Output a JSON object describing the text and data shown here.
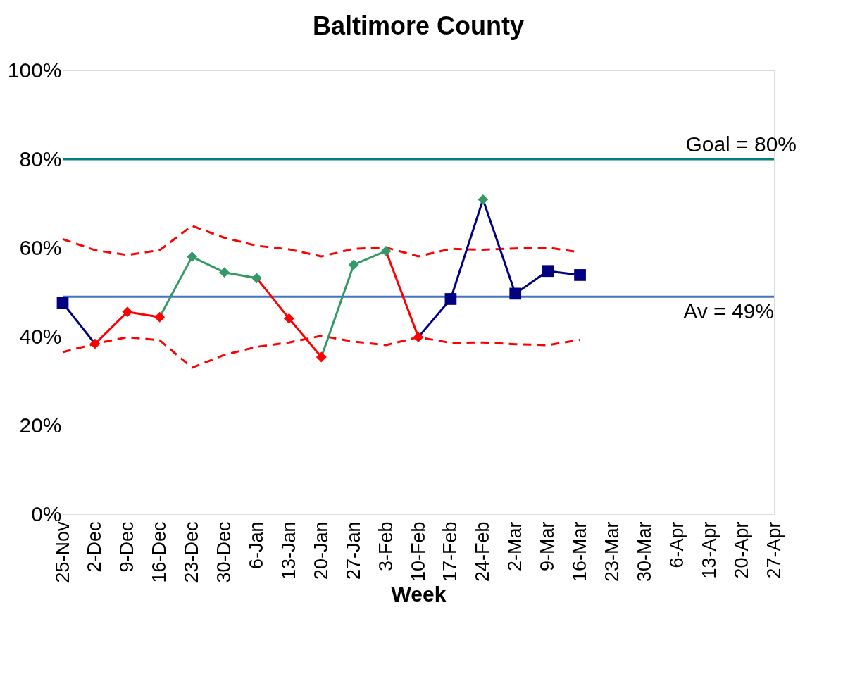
{
  "chart_data": {
    "type": "line",
    "title": "Baltimore County",
    "xlabel": "Week",
    "categories": [
      "25-Nov",
      "2-Dec",
      "9-Dec",
      "16-Dec",
      "23-Dec",
      "30-Dec",
      "6-Jan",
      "13-Jan",
      "20-Jan",
      "27-Jan",
      "3-Feb",
      "10-Feb",
      "17-Feb",
      "24-Feb",
      "2-Mar",
      "9-Mar",
      "16-Mar",
      "23-Mar",
      "30-Mar",
      "6-Apr",
      "13-Apr",
      "20-Apr",
      "27-Apr"
    ],
    "series": [
      {
        "color": "#ff0000",
        "line_style": "dashed",
        "marker": "none",
        "values": [
          62.0,
          59.5,
          58.4,
          59.5,
          65.0,
          62.3,
          60.5,
          59.7,
          58.1,
          59.8,
          60.1,
          58.1,
          59.8,
          59.6,
          59.9,
          60.1,
          59.0,
          null,
          null,
          null,
          null,
          null,
          null
        ]
      },
      {
        "color": "#ff0000",
        "line_style": "dashed",
        "marker": "none",
        "values": [
          36.5,
          38.4,
          39.9,
          39.2,
          33.0,
          35.9,
          37.7,
          38.7,
          40.2,
          38.9,
          38.1,
          39.9,
          38.6,
          38.7,
          38.3,
          38.1,
          39.3,
          null,
          null,
          null,
          null,
          null,
          null
        ]
      },
      {
        "color": "#000080",
        "line_style": "solid",
        "marker": "none",
        "values": [
          47.6,
          38.4,
          null,
          null,
          null,
          null,
          null,
          null,
          null,
          null,
          null,
          39.9,
          48.5,
          70.9,
          49.7,
          54.8,
          53.9,
          null,
          null,
          null,
          null,
          null,
          null
        ]
      },
      {
        "color": "#ff0000",
        "line_style": "solid",
        "marker": "none",
        "values": [
          null,
          38.4,
          45.6,
          44.4,
          null,
          null,
          53.2,
          44.1,
          35.4,
          null,
          59.3,
          39.9,
          null,
          null,
          null,
          null,
          null,
          null,
          null,
          null,
          null,
          null,
          null
        ]
      },
      {
        "color": "#339966",
        "line_style": "solid",
        "marker": "none",
        "values": [
          null,
          null,
          null,
          44.4,
          58.0,
          54.5,
          53.2,
          null,
          35.4,
          56.2,
          59.3,
          null,
          null,
          null,
          null,
          null,
          null,
          null,
          null,
          null,
          null,
          null,
          null
        ]
      },
      {
        "type": "scatter",
        "color": "#000080",
        "marker": "square",
        "values": [
          47.6,
          null,
          null,
          null,
          null,
          null,
          null,
          null,
          null,
          null,
          null,
          null,
          48.5,
          null,
          49.7,
          54.8,
          53.9,
          null,
          null,
          null,
          null,
          null,
          null
        ]
      },
      {
        "type": "scatter",
        "color": "#ff0000",
        "marker": "diamond",
        "values": [
          null,
          38.4,
          45.6,
          44.4,
          null,
          null,
          null,
          44.1,
          35.4,
          null,
          null,
          39.9,
          null,
          null,
          null,
          null,
          null,
          null,
          null,
          null,
          null,
          null,
          null
        ]
      },
      {
        "type": "scatter",
        "color": "#339966",
        "marker": "diamond",
        "values": [
          null,
          null,
          null,
          null,
          58.0,
          54.5,
          53.2,
          null,
          null,
          56.2,
          59.3,
          null,
          null,
          70.9,
          null,
          null,
          null,
          null,
          null,
          null,
          null,
          null,
          null
        ]
      }
    ],
    "ref_lines": [
      {
        "axis": "y",
        "value": 80,
        "label": "Goal = 80%",
        "color": "#008080"
      },
      {
        "axis": "y",
        "value": 49,
        "label": "Av = 49%",
        "color": "#4472c4"
      }
    ],
    "ylim": [
      0,
      100
    ],
    "yticks": [
      {
        "value": 0,
        "label": "0%"
      },
      {
        "value": 20,
        "label": "20%"
      },
      {
        "value": 40,
        "label": "40%"
      },
      {
        "value": 60,
        "label": "60%"
      },
      {
        "value": 80,
        "label": "80%"
      },
      {
        "value": 100,
        "label": "100%"
      }
    ],
    "grid": false
  }
}
